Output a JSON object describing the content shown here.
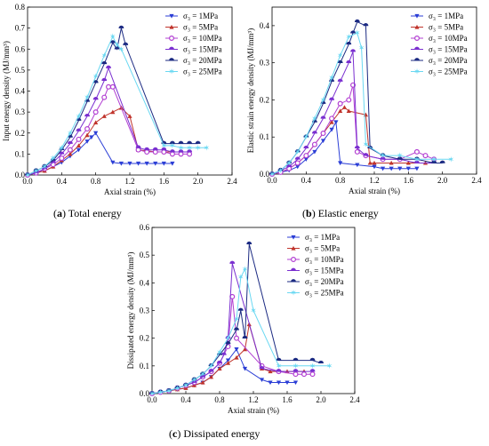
{
  "chart_data": [
    {
      "type": "line",
      "title": "",
      "caption": {
        "letter": "a",
        "text": " Total energy"
      },
      "xlabel": "Axial strain (%)",
      "ylabel": "Input energy density (MJ/mm³)",
      "xlim": [
        0,
        2.4
      ],
      "ylim": [
        0,
        0.8
      ],
      "xticks": [
        "0.0",
        "0.4",
        "0.8",
        "1.2",
        "1.6",
        "2.0",
        "2.4"
      ],
      "yticks": [
        "0.0",
        "0.1",
        "0.2",
        "0.3",
        "0.4",
        "0.5",
        "0.6",
        "0.7",
        "0.8"
      ],
      "legend_position": "top-right",
      "series": [
        {
          "name": "σ₃ = 1MPa",
          "color": "#2b3ed6",
          "marker": "down",
          "x": [
            0,
            0.1,
            0.2,
            0.3,
            0.4,
            0.5,
            0.6,
            0.7,
            0.75,
            0.8,
            1.0,
            1.1,
            1.2,
            1.3,
            1.4,
            1.5,
            1.6,
            1.7
          ],
          "y": [
            0,
            0.01,
            0.02,
            0.04,
            0.06,
            0.09,
            0.12,
            0.16,
            0.18,
            0.2,
            0.06,
            0.055,
            0.055,
            0.055,
            0.055,
            0.055,
            0.055,
            0.055
          ]
        },
        {
          "name": "σ₃ = 5MPa",
          "color": "#c0342c",
          "marker": "up",
          "x": [
            0,
            0.1,
            0.2,
            0.3,
            0.4,
            0.5,
            0.6,
            0.7,
            0.8,
            0.9,
            1.0,
            1.1,
            1.2,
            1.3,
            1.4,
            1.5,
            1.6,
            1.7,
            1.8
          ],
          "y": [
            0,
            0.01,
            0.02,
            0.04,
            0.07,
            0.1,
            0.14,
            0.19,
            0.25,
            0.28,
            0.3,
            0.32,
            0.28,
            0.12,
            0.115,
            0.11,
            0.11,
            0.11,
            0.11
          ]
        },
        {
          "name": "σ₃ = 10MPa",
          "color": "#b23fd2",
          "marker": "circ",
          "x": [
            0,
            0.1,
            0.2,
            0.3,
            0.4,
            0.5,
            0.6,
            0.7,
            0.8,
            0.9,
            0.95,
            1.0,
            1.3,
            1.4,
            1.5,
            1.6,
            1.7,
            1.8,
            1.9
          ],
          "y": [
            0,
            0.01,
            0.03,
            0.05,
            0.08,
            0.12,
            0.17,
            0.22,
            0.3,
            0.37,
            0.42,
            0.42,
            0.12,
            0.11,
            0.11,
            0.11,
            0.1,
            0.1,
            0.1
          ]
        },
        {
          "name": "σ₃ = 15MPa",
          "color": "#7a2fd0",
          "marker": "half",
          "x": [
            0,
            0.1,
            0.2,
            0.3,
            0.4,
            0.5,
            0.6,
            0.7,
            0.8,
            0.9,
            0.95,
            1.3,
            1.4,
            1.5,
            1.6,
            1.7,
            1.8,
            1.9
          ],
          "y": [
            0,
            0.01,
            0.03,
            0.06,
            0.1,
            0.15,
            0.21,
            0.28,
            0.36,
            0.45,
            0.51,
            0.13,
            0.12,
            0.12,
            0.12,
            0.11,
            0.11,
            0.11
          ]
        },
        {
          "name": "σ₃ = 20MPa",
          "color": "#1b2a82",
          "marker": "half",
          "x": [
            0,
            0.1,
            0.2,
            0.3,
            0.4,
            0.5,
            0.6,
            0.7,
            0.8,
            0.9,
            1.0,
            1.05,
            1.1,
            1.15,
            1.6,
            1.7,
            1.8,
            1.9,
            2.0
          ],
          "y": [
            0,
            0.02,
            0.04,
            0.07,
            0.12,
            0.18,
            0.26,
            0.35,
            0.44,
            0.53,
            0.63,
            0.6,
            0.7,
            0.62,
            0.15,
            0.15,
            0.15,
            0.15,
            0.15
          ]
        },
        {
          "name": "σ₃ = 25MPa",
          "color": "#6ad8f2",
          "marker": "star",
          "x": [
            0,
            0.1,
            0.2,
            0.3,
            0.4,
            0.5,
            0.6,
            0.7,
            0.8,
            0.9,
            1.0,
            1.05,
            1.1,
            1.6,
            1.7,
            1.8,
            1.9,
            2.0,
            2.1
          ],
          "y": [
            0,
            0.02,
            0.04,
            0.08,
            0.13,
            0.2,
            0.28,
            0.37,
            0.47,
            0.57,
            0.66,
            0.62,
            0.6,
            0.14,
            0.14,
            0.13,
            0.13,
            0.13,
            0.13
          ]
        }
      ]
    },
    {
      "type": "line",
      "title": "",
      "caption": {
        "letter": "b",
        "text": " Elastic energy"
      },
      "xlabel": "Axial strain (%)",
      "ylabel": "Elastic strain energy density (MJ/mm³)",
      "xlim": [
        0,
        2.4
      ],
      "ylim": [
        0,
        0.45
      ],
      "xticks": [
        "0.0",
        "0.4",
        "0.8",
        "1.2",
        "1.6",
        "2.0",
        "2.4"
      ],
      "yticks": [
        "0.0",
        "0.1",
        "0.2",
        "0.3",
        "0.4"
      ],
      "legend_position": "top-right",
      "series": [
        {
          "name": "σ₃ = 1MPa",
          "color": "#2b3ed6",
          "marker": "down",
          "x": [
            0,
            0.1,
            0.2,
            0.3,
            0.4,
            0.5,
            0.6,
            0.7,
            0.75,
            0.8,
            1.0,
            1.2,
            1.3,
            1.4,
            1.5,
            1.6,
            1.7
          ],
          "y": [
            0,
            0.005,
            0.01,
            0.02,
            0.04,
            0.06,
            0.09,
            0.12,
            0.14,
            0.03,
            0.025,
            0.02,
            0.015,
            0.015,
            0.015,
            0.015,
            0.015
          ]
        },
        {
          "name": "σ₃ = 5MPa",
          "color": "#c0342c",
          "marker": "up",
          "x": [
            0,
            0.1,
            0.2,
            0.3,
            0.4,
            0.5,
            0.6,
            0.7,
            0.8,
            0.85,
            0.9,
            1.1,
            1.15,
            1.2,
            1.4,
            1.6,
            1.8
          ],
          "y": [
            0,
            0.005,
            0.015,
            0.03,
            0.05,
            0.08,
            0.11,
            0.14,
            0.17,
            0.18,
            0.17,
            0.16,
            0.03,
            0.03,
            0.03,
            0.03,
            0.03
          ]
        },
        {
          "name": "σ₃ = 10MPa",
          "color": "#b23fd2",
          "marker": "circ",
          "x": [
            0,
            0.1,
            0.2,
            0.3,
            0.4,
            0.5,
            0.6,
            0.7,
            0.8,
            0.9,
            0.95,
            1.0,
            1.1,
            1.3,
            1.5,
            1.7,
            1.8,
            1.9
          ],
          "y": [
            0,
            0.005,
            0.015,
            0.03,
            0.05,
            0.08,
            0.11,
            0.15,
            0.19,
            0.2,
            0.24,
            0.06,
            0.05,
            0.04,
            0.04,
            0.06,
            0.05,
            0.04
          ]
        },
        {
          "name": "σ₃ = 15MPa",
          "color": "#7a2fd0",
          "marker": "half",
          "x": [
            0,
            0.1,
            0.2,
            0.3,
            0.4,
            0.5,
            0.6,
            0.7,
            0.8,
            0.9,
            0.95,
            1.0,
            1.1,
            1.3,
            1.5,
            1.7,
            1.9
          ],
          "y": [
            0,
            0.01,
            0.02,
            0.04,
            0.07,
            0.11,
            0.15,
            0.2,
            0.25,
            0.3,
            0.33,
            0.07,
            0.05,
            0.04,
            0.04,
            0.03,
            0.03
          ]
        },
        {
          "name": "σ₃ = 20MPa",
          "color": "#1b2a82",
          "marker": "half",
          "x": [
            0,
            0.1,
            0.2,
            0.3,
            0.4,
            0.5,
            0.6,
            0.7,
            0.8,
            0.9,
            0.95,
            1.0,
            1.1,
            1.15,
            1.3,
            1.5,
            1.7,
            1.9,
            2.0
          ],
          "y": [
            0,
            0.01,
            0.03,
            0.06,
            0.1,
            0.14,
            0.19,
            0.25,
            0.3,
            0.35,
            0.38,
            0.41,
            0.4,
            0.07,
            0.05,
            0.04,
            0.04,
            0.03,
            0.03
          ]
        },
        {
          "name": "σ₃ = 25MPa",
          "color": "#6ad8f2",
          "marker": "star",
          "x": [
            0,
            0.1,
            0.2,
            0.3,
            0.4,
            0.5,
            0.6,
            0.7,
            0.8,
            0.9,
            1.0,
            1.05,
            1.1,
            1.3,
            1.5,
            1.7,
            1.9,
            2.1
          ],
          "y": [
            0,
            0.01,
            0.03,
            0.06,
            0.1,
            0.15,
            0.2,
            0.26,
            0.32,
            0.37,
            0.38,
            0.34,
            0.08,
            0.05,
            0.05,
            0.04,
            0.04,
            0.04
          ]
        }
      ]
    },
    {
      "type": "line",
      "title": "",
      "caption": {
        "letter": "c",
        "text": " Dissipated energy"
      },
      "xlabel": "Axial strain (%)",
      "ylabel": "Dissipated energy density (MJ/mm³)",
      "xlim": [
        0,
        2.4
      ],
      "ylim": [
        0,
        0.6
      ],
      "xticks": [
        "0.0",
        "0.4",
        "0.8",
        "1.2",
        "1.6",
        "2.0",
        "2.4"
      ],
      "yticks": [
        "0.0",
        "0.1",
        "0.2",
        "0.3",
        "0.4",
        "0.5",
        "0.6"
      ],
      "legend_position": "top-right",
      "series": [
        {
          "name": "σ₃ = 1MPa",
          "color": "#2b3ed6",
          "marker": "down",
          "x": [
            0,
            0.1,
            0.2,
            0.3,
            0.4,
            0.5,
            0.6,
            0.7,
            0.8,
            0.9,
            1.0,
            1.1,
            1.3,
            1.4,
            1.5,
            1.6,
            1.7
          ],
          "y": [
            0,
            0.005,
            0.01,
            0.015,
            0.02,
            0.03,
            0.04,
            0.06,
            0.09,
            0.12,
            0.16,
            0.09,
            0.05,
            0.04,
            0.04,
            0.04,
            0.04
          ]
        },
        {
          "name": "σ₃ = 5MPa",
          "color": "#c0342c",
          "marker": "up",
          "x": [
            0,
            0.1,
            0.2,
            0.3,
            0.4,
            0.5,
            0.6,
            0.7,
            0.8,
            0.9,
            1.0,
            1.1,
            1.15,
            1.3,
            1.4,
            1.6,
            1.8
          ],
          "y": [
            0,
            0.005,
            0.01,
            0.015,
            0.02,
            0.03,
            0.04,
            0.06,
            0.09,
            0.11,
            0.13,
            0.16,
            0.25,
            0.09,
            0.08,
            0.08,
            0.08
          ]
        },
        {
          "name": "σ₃ = 10MPa",
          "color": "#b23fd2",
          "marker": "circ",
          "x": [
            0,
            0.1,
            0.2,
            0.3,
            0.4,
            0.5,
            0.6,
            0.7,
            0.8,
            0.9,
            0.95,
            1.0,
            1.3,
            1.5,
            1.7,
            1.8,
            1.9
          ],
          "y": [
            0,
            0.005,
            0.01,
            0.02,
            0.03,
            0.04,
            0.06,
            0.08,
            0.11,
            0.17,
            0.35,
            0.2,
            0.1,
            0.08,
            0.07,
            0.07,
            0.07
          ]
        },
        {
          "name": "σ₃ = 15MPa",
          "color": "#7a2fd0",
          "marker": "half",
          "x": [
            0,
            0.1,
            0.2,
            0.3,
            0.4,
            0.5,
            0.6,
            0.7,
            0.8,
            0.85,
            0.9,
            0.95,
            1.3,
            1.5,
            1.7,
            1.9
          ],
          "y": [
            0,
            0.005,
            0.01,
            0.02,
            0.03,
            0.04,
            0.06,
            0.08,
            0.11,
            0.14,
            0.2,
            0.47,
            0.09,
            0.08,
            0.08,
            0.08
          ]
        },
        {
          "name": "σ₃ = 20MPa",
          "color": "#1b2a82",
          "marker": "half",
          "x": [
            0,
            0.1,
            0.2,
            0.3,
            0.4,
            0.5,
            0.6,
            0.7,
            0.8,
            0.9,
            1.0,
            1.05,
            1.1,
            1.15,
            1.5,
            1.7,
            1.9,
            2.0
          ],
          "y": [
            0,
            0.005,
            0.01,
            0.02,
            0.03,
            0.05,
            0.07,
            0.1,
            0.14,
            0.18,
            0.23,
            0.3,
            0.2,
            0.54,
            0.12,
            0.12,
            0.12,
            0.11
          ]
        },
        {
          "name": "σ₃ = 25MPa",
          "color": "#6ad8f2",
          "marker": "star",
          "x": [
            0,
            0.1,
            0.2,
            0.3,
            0.4,
            0.5,
            0.6,
            0.7,
            0.8,
            0.9,
            1.0,
            1.05,
            1.1,
            1.2,
            1.5,
            1.7,
            1.9,
            2.1
          ],
          "y": [
            0,
            0.005,
            0.01,
            0.02,
            0.03,
            0.05,
            0.07,
            0.1,
            0.15,
            0.2,
            0.27,
            0.42,
            0.45,
            0.3,
            0.1,
            0.1,
            0.1,
            0.1
          ]
        }
      ]
    }
  ]
}
